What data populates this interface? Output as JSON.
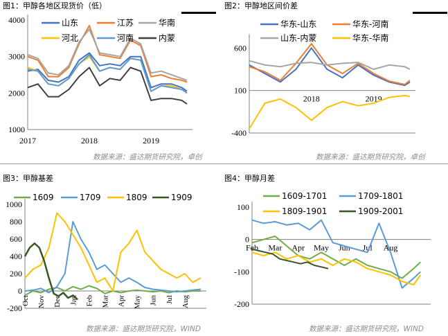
{
  "source_left": "数据来源：盛达期货研究院，卓创",
  "source_right_bottom": "数据来源：盛达期货研究院，WIND",
  "chart_data": [
    {
      "id": "fig1",
      "type": "line",
      "title": "图1：甲醇各地区现货价（低）",
      "ylim": [
        1000,
        4000
      ],
      "yticks": [
        1000,
        2000,
        3000,
        4000
      ],
      "xticks": [
        "2017",
        "2018",
        "2019"
      ],
      "xrange": [
        "2017-01",
        "2019-08"
      ],
      "legend": "top",
      "series": [
        {
          "name": "山东",
          "color": "#4472c4",
          "x": [
            "2017-01",
            "2017-03",
            "2017-05",
            "2017-07",
            "2017-09",
            "2017-11",
            "2018-01",
            "2018-03",
            "2018-05",
            "2018-07",
            "2018-09",
            "2018-11",
            "2019-01",
            "2019-03",
            "2019-05",
            "2019-07",
            "2019-08"
          ],
          "y": [
            2600,
            2650,
            2350,
            2300,
            2450,
            2900,
            3100,
            2750,
            2800,
            2750,
            3000,
            3000,
            2150,
            2250,
            2250,
            2150,
            2050
          ]
        },
        {
          "name": "江苏",
          "color": "#ed7d31",
          "x": [
            "2017-01",
            "2017-03",
            "2017-05",
            "2017-07",
            "2017-09",
            "2017-11",
            "2018-01",
            "2018-03",
            "2018-05",
            "2018-07",
            "2018-09",
            "2018-11",
            "2019-01",
            "2019-03",
            "2019-05",
            "2019-07",
            "2019-08"
          ],
          "y": [
            3000,
            2900,
            2450,
            2450,
            2700,
            3350,
            3850,
            3050,
            3000,
            2950,
            3450,
            3300,
            2450,
            2500,
            2400,
            2350,
            2300
          ]
        },
        {
          "name": "华南",
          "color": "#a5a5a5",
          "x": [
            "2017-01",
            "2017-03",
            "2017-05",
            "2017-07",
            "2017-09",
            "2017-11",
            "2018-01",
            "2018-03",
            "2018-05",
            "2018-07",
            "2018-09",
            "2018-11",
            "2019-01",
            "2019-03",
            "2019-05",
            "2019-07",
            "2019-08"
          ],
          "y": [
            3050,
            2950,
            2550,
            2500,
            2750,
            3400,
            3750,
            3100,
            3050,
            3000,
            3500,
            3350,
            2550,
            2600,
            2500,
            2400,
            2350
          ]
        },
        {
          "name": "河北",
          "color": "#ffc000",
          "x": [
            "2017-01",
            "2017-03",
            "2017-05",
            "2017-07",
            "2017-09",
            "2017-11",
            "2018-01",
            "2018-03",
            "2018-05",
            "2018-07",
            "2018-09",
            "2018-11",
            "2019-01",
            "2019-03",
            "2019-05",
            "2019-07",
            "2019-08"
          ],
          "y": [
            2700,
            2600,
            2250,
            2200,
            2400,
            2800,
            3000,
            2600,
            2700,
            2650,
            2950,
            2900,
            2050,
            2200,
            2200,
            2100,
            2000
          ]
        },
        {
          "name": "河南",
          "color": "#5b9bd5",
          "x": [
            "2017-01",
            "2017-03",
            "2017-05",
            "2017-07",
            "2017-09",
            "2017-11",
            "2018-01",
            "2018-03",
            "2018-05",
            "2018-07",
            "2018-09",
            "2018-11",
            "2019-01",
            "2019-03",
            "2019-05",
            "2019-07",
            "2019-08"
          ],
          "y": [
            2650,
            2600,
            2250,
            2200,
            2400,
            2800,
            3050,
            2600,
            2700,
            2650,
            2950,
            2900,
            2050,
            2200,
            2150,
            2100,
            2000
          ]
        },
        {
          "name": "内蒙",
          "color": "#404040",
          "x": [
            "2017-01",
            "2017-03",
            "2017-05",
            "2017-07",
            "2017-09",
            "2017-11",
            "2018-01",
            "2018-03",
            "2018-05",
            "2018-07",
            "2018-09",
            "2018-11",
            "2019-01",
            "2019-03",
            "2019-05",
            "2019-07",
            "2019-08"
          ],
          "y": [
            2150,
            2250,
            1900,
            1900,
            2100,
            2450,
            2700,
            2200,
            2400,
            2350,
            2700,
            2600,
            1800,
            1850,
            1850,
            1800,
            1700
          ]
        }
      ]
    },
    {
      "id": "fig2",
      "type": "line",
      "title": "图2：甲醇地区间价差",
      "ylim": [
        -400,
        700
      ],
      "yticks": [
        -400,
        100,
        600
      ],
      "xticks": [
        "2018",
        "2019"
      ],
      "xrange": [
        "2017-01",
        "2019-08"
      ],
      "legend": "top",
      "series": [
        {
          "name": "华东-山东",
          "color": "#4472c4",
          "x": [
            "2017-01",
            "2017-04",
            "2017-07",
            "2017-10",
            "2018-01",
            "2018-04",
            "2018-07",
            "2018-10",
            "2019-01",
            "2019-04",
            "2019-07",
            "2019-08"
          ],
          "y": [
            400,
            300,
            200,
            350,
            600,
            350,
            250,
            400,
            280,
            200,
            160,
            200
          ]
        },
        {
          "name": "华东-河南",
          "color": "#ed7d31",
          "x": [
            "2017-01",
            "2017-04",
            "2017-07",
            "2017-10",
            "2018-01",
            "2018-04",
            "2018-07",
            "2018-10",
            "2019-01",
            "2019-04",
            "2019-07",
            "2019-08"
          ],
          "y": [
            380,
            320,
            220,
            420,
            650,
            400,
            300,
            420,
            300,
            210,
            170,
            220
          ]
        },
        {
          "name": "山东-内蒙",
          "color": "#a5a5a5",
          "x": [
            "2017-01",
            "2017-04",
            "2017-07",
            "2017-10",
            "2018-01",
            "2018-04",
            "2018-07",
            "2018-10",
            "2019-01",
            "2019-04",
            "2019-07",
            "2019-08"
          ],
          "y": [
            450,
            400,
            380,
            420,
            430,
            400,
            420,
            430,
            350,
            400,
            380,
            350
          ]
        },
        {
          "name": "华东-华南",
          "color": "#ffc000",
          "x": [
            "2017-01",
            "2017-04",
            "2017-07",
            "2017-10",
            "2018-01",
            "2018-04",
            "2018-07",
            "2018-10",
            "2019-01",
            "2019-04",
            "2019-07",
            "2019-08"
          ],
          "y": [
            -350,
            -50,
            0,
            -100,
            -250,
            -100,
            -30,
            -80,
            -50,
            20,
            40,
            30
          ]
        }
      ]
    },
    {
      "id": "fig3",
      "type": "line",
      "title": "图3：甲醇基差",
      "ylim": [
        -200,
        1000
      ],
      "yticks": [
        -200,
        0,
        200,
        400,
        600,
        800,
        1000
      ],
      "xticks": [
        "Oct",
        "Nov",
        "Dec",
        "Jan",
        "Feb",
        "Mar",
        "Apr",
        "May",
        "Jun",
        "Jul",
        "Aug"
      ],
      "x_index_range": [
        0,
        11
      ],
      "legend": "top",
      "series": [
        {
          "name": "1609",
          "color": "#70ad47",
          "x": [
            0,
            0.5,
            1,
            1.5,
            2,
            2.5,
            3,
            3.5,
            4,
            4.5,
            5,
            5.5,
            6,
            6.5,
            7,
            7.5,
            8,
            8.5,
            9,
            9.5,
            10,
            10.5,
            11
          ],
          "y": [
            -50,
            0,
            -20,
            20,
            40,
            0,
            50,
            20,
            60,
            30,
            -30,
            0,
            -20,
            0,
            10,
            0,
            -10,
            0,
            -20,
            0,
            -10,
            0,
            0
          ]
        },
        {
          "name": "1709",
          "color": "#5b9bd5",
          "x": [
            0,
            0.5,
            1,
            1.5,
            2,
            2.5,
            3,
            3.5,
            4,
            4.5,
            5,
            5.5,
            6,
            6.5,
            7,
            7.5,
            8,
            8.5,
            9,
            9.5,
            10,
            10.5,
            11
          ],
          "y": [
            0,
            10,
            30,
            -20,
            50,
            200,
            800,
            600,
            450,
            250,
            300,
            200,
            100,
            150,
            100,
            40,
            20,
            10,
            0,
            -10,
            0,
            10,
            20
          ]
        },
        {
          "name": "1809",
          "color": "#ffc000",
          "x": [
            0,
            0.5,
            1,
            1.5,
            2,
            2.5,
            3,
            3.5,
            4,
            4.5,
            5,
            5.5,
            6,
            6.5,
            7,
            7.5,
            8,
            8.5,
            9,
            9.5,
            10,
            10.5,
            11
          ],
          "y": [
            150,
            250,
            300,
            500,
            900,
            800,
            650,
            500,
            300,
            100,
            150,
            0,
            450,
            550,
            700,
            450,
            350,
            250,
            200,
            150,
            200,
            100,
            150
          ]
        },
        {
          "name": "1909",
          "color": "#375623",
          "x": [
            0,
            0.3,
            0.6,
            0.9,
            1.2,
            1.5,
            1.8,
            2.1,
            2.4,
            2.7,
            3.0,
            3.3
          ],
          "y": [
            400,
            500,
            550,
            500,
            350,
            150,
            -30,
            -60,
            -20,
            -80,
            -50,
            -100
          ]
        }
      ]
    },
    {
      "id": "fig4",
      "type": "line",
      "title": "图4：甲醇月差",
      "ylim": [
        -200,
        100
      ],
      "yticks": [
        -200,
        -100,
        0,
        100
      ],
      "xticks": [
        "Feb",
        "Mar",
        "Apr",
        "May",
        "Jun",
        "Jul",
        "Aug"
      ],
      "x_index_range": [
        0,
        7.5
      ],
      "legend": "top",
      "series": [
        {
          "name": "1609-1701",
          "color": "#70ad47",
          "x": [
            0,
            0.5,
            1,
            1.5,
            2,
            2.5,
            3,
            3.5,
            4,
            4.5,
            5,
            5.5,
            6,
            6.5,
            7,
            7.3
          ],
          "y": [
            -10,
            0,
            10,
            -20,
            -50,
            -60,
            -40,
            -60,
            -80,
            -60,
            -80,
            -90,
            -100,
            -120,
            -90,
            -70
          ]
        },
        {
          "name": "1709-1801",
          "color": "#5b9bd5",
          "x": [
            0,
            0.5,
            1,
            1.5,
            2,
            2.5,
            3,
            3.5,
            4,
            4.5,
            5,
            5.5,
            6,
            6.5,
            7,
            7.3
          ],
          "y": [
            60,
            50,
            55,
            45,
            50,
            30,
            60,
            -10,
            -20,
            -30,
            -40,
            50,
            -40,
            -150,
            -120,
            -100
          ]
        },
        {
          "name": "1809-1901",
          "color": "#ffc000",
          "x": [
            0,
            0.5,
            1,
            1.5,
            2,
            2.5,
            3,
            3.5,
            4,
            4.5,
            5,
            5.5,
            6,
            6.5,
            7,
            7.3
          ],
          "y": [
            -40,
            -50,
            -40,
            -60,
            -50,
            -70,
            -60,
            -80,
            -60,
            -70,
            -90,
            -100,
            -110,
            -130,
            -140,
            -110
          ]
        },
        {
          "name": "1909-2001",
          "color": "#375623",
          "x": [
            0,
            0.3,
            0.6,
            0.9,
            1.2,
            1.5,
            1.8,
            2.1,
            2.4,
            2.7,
            3.0,
            3.3
          ],
          "y": [
            -30,
            -35,
            -40,
            -45,
            -60,
            -65,
            -70,
            -75,
            -70,
            -80,
            -85,
            -90
          ]
        }
      ]
    }
  ]
}
